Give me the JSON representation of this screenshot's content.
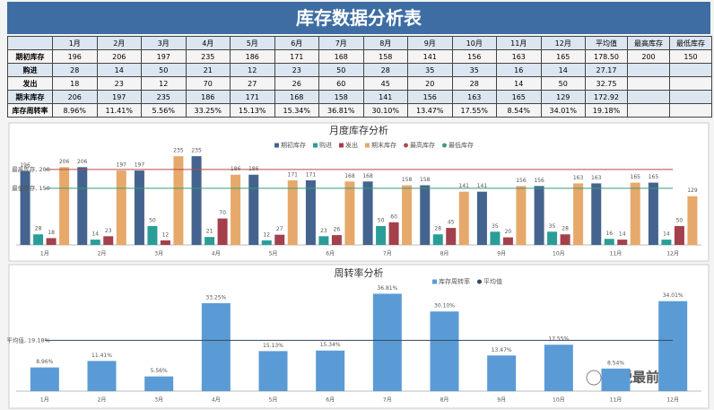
{
  "title": "库存数据分析表",
  "table": {
    "header": [
      null,
      "1月",
      "2月",
      "3月",
      "4月",
      "5月",
      "6月",
      "7月",
      "8月",
      "9月",
      "10月",
      "11月",
      "12月",
      "平均值",
      "最高库存",
      "最低库存"
    ],
    "rows": [
      [
        "期初库存",
        "196",
        "206",
        "197",
        "235",
        "186",
        "171",
        "168",
        "158",
        "141",
        "156",
        "163",
        "165",
        "178.50",
        "200",
        "150"
      ],
      [
        "购进",
        "28",
        "14",
        "50",
        "21",
        "12",
        "23",
        "50",
        "28",
        "35",
        "35",
        "16",
        "14",
        "27.17"
      ],
      [
        "发出",
        "18",
        "23",
        "12",
        "70",
        "27",
        "26",
        "60",
        "45",
        "20",
        "28",
        "14",
        "50",
        "32.75"
      ],
      [
        "期末库存",
        "206",
        "197",
        "235",
        "186",
        "171",
        "168",
        "158",
        "141",
        "156",
        "163",
        "165",
        "129",
        "172.92"
      ],
      [
        "库存周转率",
        "8.96%",
        "11.41%",
        "5.56%",
        "33.25%",
        "15.13%",
        "15.34%",
        "36.81%",
        "30.10%",
        "13.47%",
        "17.55%",
        "8.54%",
        "34.01%",
        "19.18%"
      ]
    ]
  },
  "chart_data": [
    {
      "type": "bar",
      "title": "月度库存分析",
      "categories": [
        "1月",
        "2月",
        "3月",
        "4月",
        "5月",
        "6月",
        "7月",
        "8月",
        "9月",
        "10月",
        "11月",
        "12月"
      ],
      "ylim": [
        0,
        240
      ],
      "series": [
        {
          "name": "期初库存",
          "type": "bar",
          "color": "#44648f",
          "values": [
            196,
            206,
            197,
            235,
            186,
            171,
            168,
            158,
            141,
            156,
            163,
            165
          ]
        },
        {
          "name": "购进",
          "type": "bar",
          "color": "#2b9d98",
          "values": [
            28,
            14,
            50,
            21,
            12,
            23,
            50,
            28,
            35,
            35,
            16,
            14
          ]
        },
        {
          "name": "发出",
          "type": "bar",
          "color": "#a3404c",
          "values": [
            18,
            23,
            12,
            70,
            27,
            26,
            60,
            45,
            20,
            28,
            14,
            50
          ]
        },
        {
          "name": "期末库存",
          "type": "bar",
          "color": "#e6a96b",
          "values": [
            206,
            197,
            235,
            186,
            171,
            168,
            158,
            141,
            156,
            163,
            165,
            129
          ]
        },
        {
          "name": "最高库存",
          "type": "line",
          "color": "#b34a4a",
          "values": [
            200,
            200,
            200,
            200,
            200,
            200,
            200,
            200,
            200,
            200,
            200,
            200
          ],
          "value_labels": [
            "最高库存, 200",
            null,
            null,
            null,
            null,
            null,
            null,
            null,
            null,
            null,
            null,
            null
          ]
        },
        {
          "name": "最低库存",
          "type": "line",
          "color": "#3b9a78",
          "values": [
            150,
            150,
            150,
            150,
            150,
            150,
            150,
            150,
            150,
            150,
            150,
            150
          ],
          "value_labels": [
            "最低库存, 150",
            null,
            null,
            null,
            null,
            null,
            null,
            null,
            null,
            null,
            null,
            null
          ]
        }
      ]
    },
    {
      "type": "bar",
      "title": "周转率分析",
      "categories": [
        "1月",
        "2月",
        "3月",
        "4月",
        "5月",
        "6月",
        "7月",
        "8月",
        "9月",
        "10月",
        "11月",
        "12月"
      ],
      "ylim": [
        0,
        40
      ],
      "series": [
        {
          "name": "库存周转率",
          "type": "bar",
          "color": "#5b9bd5",
          "values": [
            8.96,
            11.41,
            5.56,
            33.25,
            15.13,
            15.34,
            36.81,
            30.1,
            13.47,
            17.55,
            8.54,
            34.01
          ],
          "value_labels": [
            "8.96%",
            "11.41%",
            "5.56%",
            "33.25%",
            "15.13%",
            "15.34%",
            "36.81%",
            "30.10%",
            "13.47%",
            "17.55%",
            "8.54%",
            "34.01%"
          ]
        },
        {
          "name": "平均值",
          "type": "line",
          "color": "#2f4a66",
          "values": [
            19.18,
            19.18,
            19.18,
            19.18,
            19.18,
            19.18,
            19.18,
            19.18,
            19.18,
            19.18,
            19.18,
            19.18
          ],
          "value_labels": [
            "平均值, 19.18%",
            null,
            null,
            null,
            null,
            null,
            null,
            null,
            null,
            null,
            null,
            null
          ]
        }
      ]
    }
  ],
  "watermark": "财税最前线"
}
